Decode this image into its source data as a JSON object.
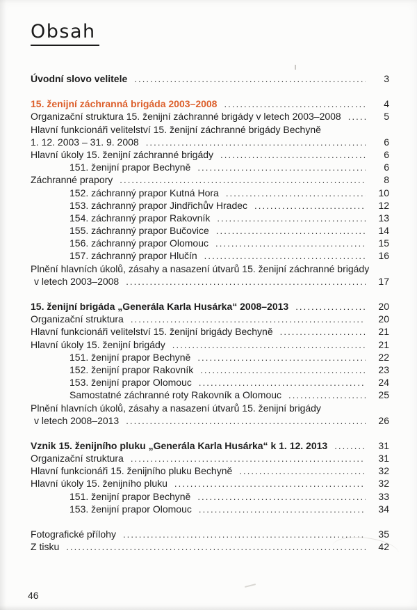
{
  "colors": {
    "accent": "#dc5f2b"
  },
  "page": {
    "title": "Obsah",
    "footer_page_number": "46"
  },
  "toc": {
    "entries": [
      {
        "text": "Úvodní slovo velitele",
        "page": "3",
        "style": "bold",
        "indent": "none",
        "leader": true,
        "gap_before": false
      },
      {
        "text": "15. ženijní záchranná brigáda 2003–2008",
        "page": "4",
        "style": "accent",
        "indent": "none",
        "leader": true,
        "gap_before": true
      },
      {
        "text": "Organizační struktura 15. ženijní záchranné brigády v letech 2003–2008",
        "page": "5",
        "style": "normal",
        "indent": "none",
        "leader": true,
        "gap_before": false
      },
      {
        "text": "Hlavní funkcionáři velitelství 15. ženijní záchranné brigády Bechyně",
        "page": null,
        "style": "normal",
        "indent": "none",
        "leader": false,
        "gap_before": false
      },
      {
        "text": "1. 12. 2003 – 31. 9. 2008",
        "page": "6",
        "style": "normal",
        "indent": "none",
        "leader": true,
        "gap_before": false
      },
      {
        "text": "Hlavní úkoly 15. ženijní záchranné brigády",
        "page": "6",
        "style": "normal",
        "indent": "none",
        "leader": true,
        "gap_before": false
      },
      {
        "text": "151. ženijní prapor Bechyně",
        "page": "6",
        "style": "normal",
        "indent": "sub",
        "leader": true,
        "gap_before": false
      },
      {
        "text": "Záchranné prapory",
        "page": "8",
        "style": "normal",
        "indent": "none",
        "leader": true,
        "gap_before": false
      },
      {
        "text": "152. záchranný prapor Kutná Hora",
        "page": "10",
        "style": "normal",
        "indent": "sub",
        "leader": true,
        "gap_before": false
      },
      {
        "text": "153. záchranný prapor Jindřichův Hradec",
        "page": "12",
        "style": "normal",
        "indent": "sub",
        "leader": true,
        "gap_before": false
      },
      {
        "text": "154. záchranný prapor Rakovník",
        "page": "13",
        "style": "normal",
        "indent": "sub",
        "leader": true,
        "gap_before": false
      },
      {
        "text": "155. záchranný prapor Bučovice",
        "page": "14",
        "style": "normal",
        "indent": "sub",
        "leader": true,
        "gap_before": false
      },
      {
        "text": "156. záchranný prapor Olomouc",
        "page": "15",
        "style": "normal",
        "indent": "sub",
        "leader": true,
        "gap_before": false
      },
      {
        "text": "157. záchranný prapor Hlučín",
        "page": "16",
        "style": "normal",
        "indent": "sub",
        "leader": true,
        "gap_before": false
      },
      {
        "text": "Plnění hlavních úkolů, zásahy a nasazení útvarů 15. ženijní záchranné brigády",
        "page": null,
        "style": "normal",
        "indent": "none",
        "leader": false,
        "gap_before": false
      },
      {
        "text": "v letech 2003–2008",
        "page": "17",
        "style": "normal",
        "indent": "cont",
        "leader": true,
        "gap_before": false
      },
      {
        "text": "15. ženijní brigáda „Generála Karla Husárka“ 2008–2013",
        "page": "20",
        "style": "bold",
        "indent": "none",
        "leader": true,
        "gap_before": true
      },
      {
        "text": "Organizační struktura",
        "page": "20",
        "style": "normal",
        "indent": "none",
        "leader": true,
        "gap_before": false
      },
      {
        "text": "Hlavní funkcionáři velitelství 15. ženijní brigády Bechyně",
        "page": "21",
        "style": "normal",
        "indent": "none",
        "leader": true,
        "gap_before": false
      },
      {
        "text": "Hlavní úkoly 15. ženijní brigády",
        "page": "21",
        "style": "normal",
        "indent": "none",
        "leader": true,
        "gap_before": false
      },
      {
        "text": "151. ženijní prapor Bechyně",
        "page": "22",
        "style": "normal",
        "indent": "sub",
        "leader": true,
        "gap_before": false
      },
      {
        "text": "152. ženijní prapor Rakovník",
        "page": "23",
        "style": "normal",
        "indent": "sub",
        "leader": true,
        "gap_before": false
      },
      {
        "text": "153. ženijní prapor Olomouc",
        "page": "24",
        "style": "normal",
        "indent": "sub",
        "leader": true,
        "gap_before": false
      },
      {
        "text": "Samostatné záchranné roty Rakovník a Olomouc",
        "page": "25",
        "style": "normal",
        "indent": "sub",
        "leader": true,
        "gap_before": false
      },
      {
        "text": "Plnění hlavních úkolů, zásahy a nasazení útvarů 15. ženijní brigády",
        "page": null,
        "style": "normal",
        "indent": "none",
        "leader": false,
        "gap_before": false
      },
      {
        "text": "v letech 2008–2013",
        "page": "26",
        "style": "normal",
        "indent": "cont",
        "leader": true,
        "gap_before": false
      },
      {
        "text": "Vznik 15. ženijního pluku „Generála Karla Husárka“ k 1. 12. 2013",
        "page": "31",
        "style": "bold",
        "indent": "none",
        "leader": true,
        "gap_before": true
      },
      {
        "text": "Organizační struktura",
        "page": "31",
        "style": "normal",
        "indent": "none",
        "leader": true,
        "gap_before": false
      },
      {
        "text": "Hlavní funkcionáři 15. ženijního pluku Bechyně",
        "page": "32",
        "style": "normal",
        "indent": "none",
        "leader": true,
        "gap_before": false
      },
      {
        "text": "Hlavní úkoly 15. ženijního pluku",
        "page": "32",
        "style": "normal",
        "indent": "none",
        "leader": true,
        "gap_before": false
      },
      {
        "text": "151. ženijní prapor Bechyně",
        "page": "33",
        "style": "normal",
        "indent": "sub",
        "leader": true,
        "gap_before": false
      },
      {
        "text": "153. ženijní prapor Olomouc",
        "page": "34",
        "style": "normal",
        "indent": "sub",
        "leader": true,
        "gap_before": false
      },
      {
        "text": "Fotografické přílohy",
        "page": "35",
        "style": "normal",
        "indent": "none",
        "leader": true,
        "gap_before": true
      },
      {
        "text": "Z tisku",
        "page": "42",
        "style": "normal",
        "indent": "none",
        "leader": true,
        "gap_before": false
      }
    ]
  }
}
